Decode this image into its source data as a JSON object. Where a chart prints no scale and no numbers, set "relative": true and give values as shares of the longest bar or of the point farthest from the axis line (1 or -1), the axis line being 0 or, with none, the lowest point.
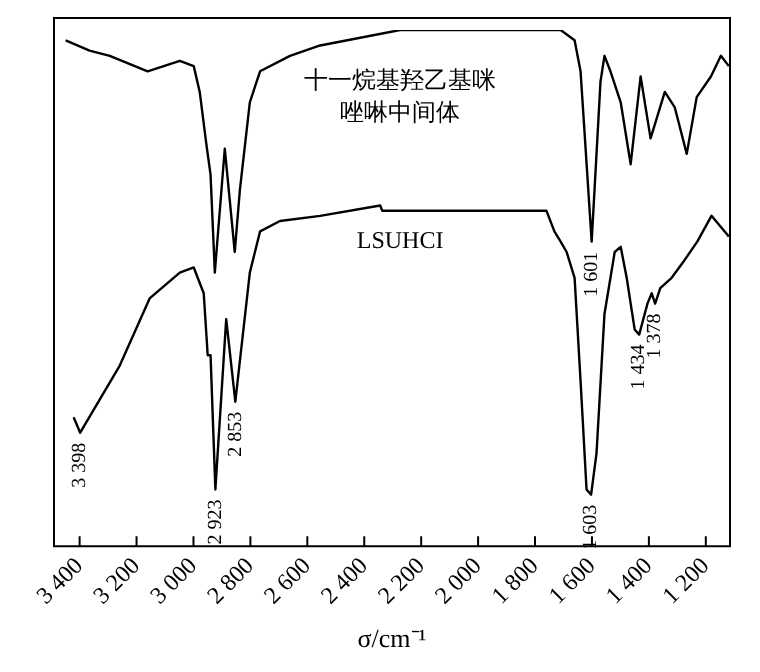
{
  "chart_data": {
    "type": "line",
    "xlabel": "σ/cm⁻¹",
    "relative": true,
    "grid": false,
    "legend": false,
    "marker": "none",
    "line_style": "solid",
    "xlim": [
      3490,
      1115
    ],
    "xticks": [
      {
        "value": 3400,
        "label": "3 400"
      },
      {
        "value": 3200,
        "label": "3 200"
      },
      {
        "value": 3000,
        "label": "3 000"
      },
      {
        "value": 2800,
        "label": "2 800"
      },
      {
        "value": 2600,
        "label": "2 600"
      },
      {
        "value": 2400,
        "label": "2 400"
      },
      {
        "value": 2200,
        "label": "2 200"
      },
      {
        "value": 2000,
        "label": "2 000"
      },
      {
        "value": 1800,
        "label": "1 800"
      },
      {
        "value": 1600,
        "label": "1 600"
      },
      {
        "value": 1400,
        "label": "1 400"
      },
      {
        "value": 1200,
        "label": "1 200"
      }
    ],
    "series": [
      {
        "name": "十一烷基羟乙基咪唑啉中间体",
        "color": "#000000",
        "x": [
          3449,
          3365,
          3294,
          3161,
          3048,
          2999,
          2978,
          2955,
          2940,
          2925,
          2890,
          2855,
          2837,
          2802,
          2766,
          2661,
          2555,
          2274,
          1710,
          1661,
          1640,
          1601,
          1570,
          1556,
          1535,
          1499,
          1464,
          1429,
          1394,
          1344,
          1309,
          1267,
          1232,
          1182,
          1147,
          1119
        ],
        "values": [
          0.98,
          0.96,
          0.95,
          0.92,
          0.94,
          0.93,
          0.88,
          0.78,
          0.72,
          0.53,
          0.77,
          0.57,
          0.69,
          0.86,
          0.92,
          0.95,
          0.97,
          1.0,
          1.0,
          0.98,
          0.92,
          0.59,
          0.9,
          0.95,
          0.92,
          0.86,
          0.74,
          0.91,
          0.79,
          0.88,
          0.85,
          0.76,
          0.87,
          0.91,
          0.95,
          0.93
        ]
      },
      {
        "name": "LSUHCI",
        "color": "#000000",
        "x": [
          3421,
          3398,
          3259,
          3154,
          3048,
          2999,
          2964,
          2950,
          2940,
          2923,
          2885,
          2853,
          2802,
          2766,
          2696,
          2555,
          2344,
          2337,
          1760,
          1732,
          1710,
          1689,
          1661,
          1640,
          1619,
          1603,
          1584,
          1556,
          1520,
          1499,
          1478,
          1450,
          1434,
          1405,
          1390,
          1378,
          1360,
          1320,
          1280,
          1230,
          1180,
          1119
        ],
        "values": [
          0.25,
          0.22,
          0.35,
          0.48,
          0.53,
          0.54,
          0.49,
          0.37,
          0.37,
          0.11,
          0.44,
          0.28,
          0.53,
          0.61,
          0.63,
          0.64,
          0.66,
          0.65,
          0.65,
          0.61,
          0.59,
          0.57,
          0.52,
          0.32,
          0.11,
          0.1,
          0.18,
          0.45,
          0.57,
          0.58,
          0.52,
          0.42,
          0.41,
          0.47,
          0.49,
          0.47,
          0.5,
          0.52,
          0.55,
          0.59,
          0.64,
          0.6
        ]
      }
    ],
    "annotations": [
      {
        "text": "3 398",
        "x": 3398,
        "y": 0.22
      },
      {
        "text": "2 923",
        "x": 2923,
        "y": 0.11
      },
      {
        "text": "2 853",
        "x": 2853,
        "y": 0.28
      },
      {
        "text": "1 601",
        "x": 1601,
        "y": 0.59
      },
      {
        "text": "1 603",
        "x": 1603,
        "y": 0.1
      },
      {
        "text": "1 434",
        "x": 1434,
        "y": 0.41
      },
      {
        "text": "1 378",
        "x": 1378,
        "y": 0.47
      }
    ]
  }
}
